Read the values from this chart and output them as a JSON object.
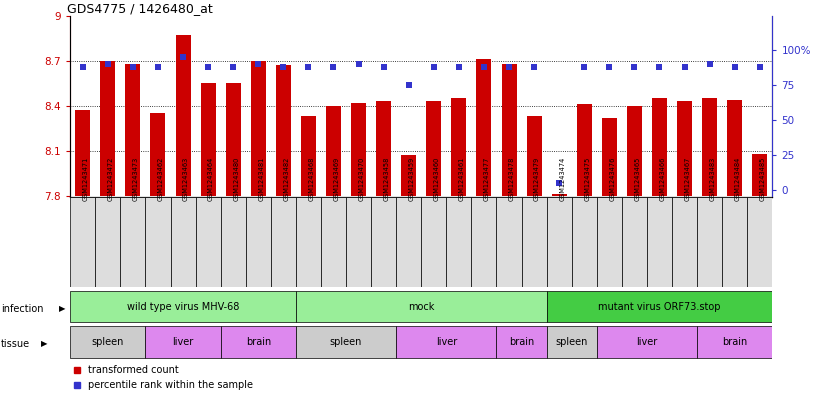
{
  "title": "GDS4775 / 1426480_at",
  "samples": [
    "GSM1243471",
    "GSM1243472",
    "GSM1243473",
    "GSM1243462",
    "GSM1243463",
    "GSM1243464",
    "GSM1243480",
    "GSM1243481",
    "GSM1243482",
    "GSM1243468",
    "GSM1243469",
    "GSM1243470",
    "GSM1243458",
    "GSM1243459",
    "GSM1243460",
    "GSM1243461",
    "GSM1243477",
    "GSM1243478",
    "GSM1243479",
    "GSM1243474",
    "GSM1243475",
    "GSM1243476",
    "GSM1243465",
    "GSM1243466",
    "GSM1243467",
    "GSM1243483",
    "GSM1243484",
    "GSM1243485"
  ],
  "transformed_counts": [
    8.37,
    8.7,
    8.68,
    8.35,
    8.87,
    8.55,
    8.55,
    8.7,
    8.67,
    8.33,
    8.4,
    8.42,
    8.43,
    8.07,
    8.43,
    8.45,
    8.71,
    8.68,
    8.33,
    7.81,
    8.41,
    8.32,
    8.4,
    8.45,
    8.43,
    8.45,
    8.44,
    8.08
  ],
  "percentile_ranks": [
    88,
    90,
    88,
    88,
    95,
    88,
    88,
    90,
    88,
    88,
    88,
    90,
    88,
    75,
    88,
    88,
    88,
    88,
    88,
    5,
    88,
    88,
    88,
    88,
    88,
    90,
    88,
    88
  ],
  "ylim": [
    7.8,
    9.0
  ],
  "yticks_left": [
    7.8,
    8.1,
    8.4,
    8.7,
    9.0
  ],
  "yticks_right": [
    0,
    25,
    50,
    75,
    100
  ],
  "bar_color": "#cc0000",
  "dot_color": "#3333cc",
  "bg_color": "#f0f0f0",
  "infection_groups": [
    {
      "label": "wild type virus MHV-68",
      "start": 0,
      "end": 9,
      "color": "#99ee99"
    },
    {
      "label": "mock",
      "start": 9,
      "end": 19,
      "color": "#99ee99"
    },
    {
      "label": "mutant virus ORF73.stop",
      "start": 19,
      "end": 28,
      "color": "#44cc44"
    }
  ],
  "tissue_groups": [
    {
      "label": "spleen",
      "start": 0,
      "end": 3,
      "color": "#cccccc"
    },
    {
      "label": "liver",
      "start": 3,
      "end": 6,
      "color": "#dd88ee"
    },
    {
      "label": "brain",
      "start": 6,
      "end": 9,
      "color": "#dd88ee"
    },
    {
      "label": "spleen",
      "start": 9,
      "end": 13,
      "color": "#cccccc"
    },
    {
      "label": "liver",
      "start": 13,
      "end": 17,
      "color": "#dd88ee"
    },
    {
      "label": "brain",
      "start": 17,
      "end": 19,
      "color": "#dd88ee"
    },
    {
      "label": "spleen",
      "start": 19,
      "end": 21,
      "color": "#cccccc"
    },
    {
      "label": "liver",
      "start": 21,
      "end": 25,
      "color": "#dd88ee"
    },
    {
      "label": "brain",
      "start": 25,
      "end": 28,
      "color": "#dd88ee"
    }
  ]
}
